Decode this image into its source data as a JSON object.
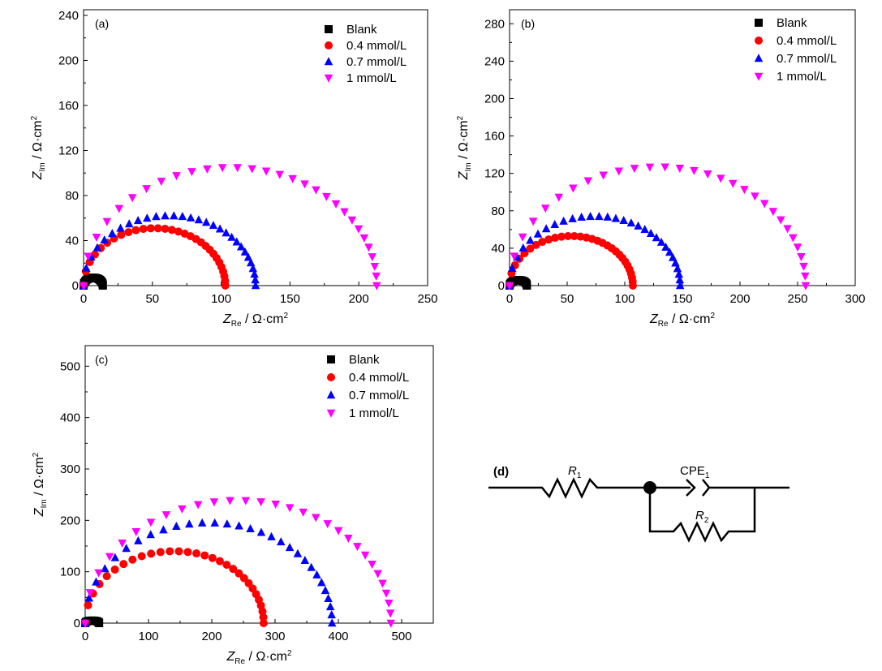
{
  "chart_data": [
    {
      "panel_label": "(a)",
      "type": "scatter",
      "xlabel": {
        "main": "Z",
        "sub": "Re",
        "unit": " / Ω·cm",
        "sup": "2"
      },
      "ylabel": {
        "main": "Z",
        "sub": "Im",
        "unit": " / Ω·cm",
        "sup": "2"
      },
      "xlim": [
        0,
        250
      ],
      "ylim": [
        0,
        245
      ],
      "xticks": [
        0,
        50,
        100,
        150,
        200,
        250
      ],
      "yticks": [
        0,
        40,
        80,
        120,
        160,
        200,
        240
      ],
      "legend_position": "top-right",
      "series": [
        {
          "name": "Blank",
          "marker": "square",
          "color": "#000000",
          "rp": 14,
          "peak": 7,
          "npts": 22
        },
        {
          "name": "0.4 mmol/L",
          "marker": "circle",
          "color": "#ff0000",
          "rp": 103,
          "peak": 51,
          "npts": 30
        },
        {
          "name": "0.7 mmol/L",
          "marker": "triangle-up",
          "color": "#0000ff",
          "rp": 125,
          "peak": 62,
          "npts": 30
        },
        {
          "name": "1 mmol/L",
          "marker": "triangle-down",
          "color": "#ff00ff",
          "rp": 213,
          "peak": 105,
          "npts": 30
        }
      ]
    },
    {
      "panel_label": "(b)",
      "type": "scatter",
      "xlabel": {
        "main": "Z",
        "sub": "Re",
        "unit": " / Ω·cm",
        "sup": "2"
      },
      "ylabel": {
        "main": "Z",
        "sub": "Im",
        "unit": " / Ω·cm",
        "sup": "2"
      },
      "xlim": [
        0,
        300
      ],
      "ylim": [
        0,
        295
      ],
      "xticks": [
        0,
        50,
        100,
        150,
        200,
        250,
        300
      ],
      "yticks": [
        0,
        40,
        80,
        120,
        160,
        200,
        240,
        280
      ],
      "legend_position": "top-right",
      "series": [
        {
          "name": "Blank",
          "marker": "square",
          "color": "#000000",
          "rp": 15,
          "peak": 6,
          "npts": 22
        },
        {
          "name": "0.4 mmol/L",
          "marker": "circle",
          "color": "#ff0000",
          "rp": 107,
          "peak": 53,
          "npts": 30
        },
        {
          "name": "0.7 mmol/L",
          "marker": "triangle-up",
          "color": "#0000ff",
          "rp": 148,
          "peak": 74,
          "npts": 30
        },
        {
          "name": "1 mmol/L",
          "marker": "triangle-down",
          "color": "#ff00ff",
          "rp": 257,
          "peak": 127,
          "npts": 30
        }
      ]
    },
    {
      "panel_label": "(c)",
      "type": "scatter",
      "xlabel": {
        "main": "Z",
        "sub": "Re",
        "unit": " / Ω·cm",
        "sup": "2"
      },
      "ylabel": {
        "main": "Z",
        "sub": "Im",
        "unit": " / Ω·cm",
        "sup": "2"
      },
      "xlim": [
        0,
        550
      ],
      "ylim": [
        0,
        540
      ],
      "xticks": [
        0,
        100,
        200,
        300,
        400,
        500
      ],
      "yticks": [
        0,
        100,
        200,
        300,
        400,
        500
      ],
      "legend_position": "top-right",
      "series": [
        {
          "name": "Blank",
          "marker": "square",
          "color": "#000000",
          "rp": 22,
          "peak": 5,
          "npts": 14
        },
        {
          "name": "0.4 mmol/L",
          "marker": "circle",
          "color": "#ff0000",
          "rp": 282,
          "peak": 140,
          "npts": 30
        },
        {
          "name": "0.7 mmol/L",
          "marker": "triangle-up",
          "color": "#0000ff",
          "rp": 390,
          "peak": 195,
          "npts": 30
        },
        {
          "name": "1 mmol/L",
          "marker": "triangle-down",
          "color": "#ff00ff",
          "rp": 483,
          "peak": 239,
          "npts": 30
        }
      ]
    }
  ],
  "circuit": {
    "panel_label": "(d)",
    "r1": {
      "main": "R",
      "sub": "1"
    },
    "cpe": {
      "main": "CPE",
      "sub": "1"
    },
    "r2": {
      "main": "R",
      "sub": "2"
    }
  }
}
